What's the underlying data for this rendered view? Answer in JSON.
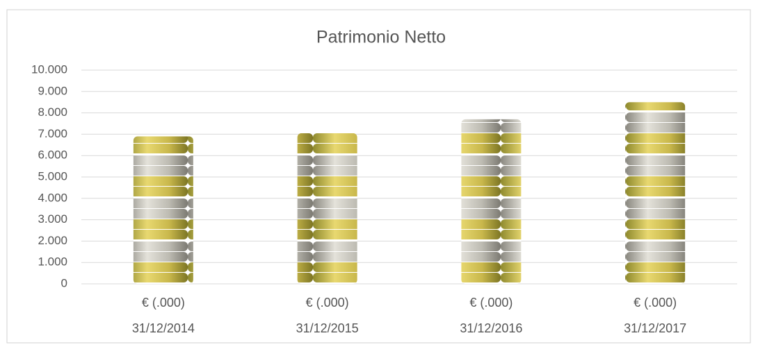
{
  "chart_data": {
    "type": "bar",
    "title": "Patrimonio Netto",
    "categories": [
      "31/12/2014",
      "31/12/2015",
      "31/12/2016",
      "31/12/2017"
    ],
    "series": [
      {
        "name": "€ (.000)",
        "color": "#c9b84c",
        "values": [
          6900,
          7050,
          7700,
          8500
        ]
      }
    ],
    "ylim": [
      0,
      10000
    ],
    "yticks": [
      0,
      {
        "value": 1000,
        "label": "1.000"
      },
      {
        "value": 2000,
        "label": "2.000"
      },
      {
        "value": 3000,
        "label": "3.000"
      },
      {
        "value": 4000,
        "label": "4.000"
      },
      {
        "value": 5000,
        "label": "5.000"
      },
      {
        "value": 6000,
        "label": "6.000"
      },
      {
        "value": 7000,
        "label": "7.000"
      },
      {
        "value": 8000,
        "label": "8.000"
      },
      {
        "value": 9000,
        "label": "9.000"
      },
      {
        "value": 10000,
        "label": "10.000"
      }
    ],
    "grid": true
  }
}
